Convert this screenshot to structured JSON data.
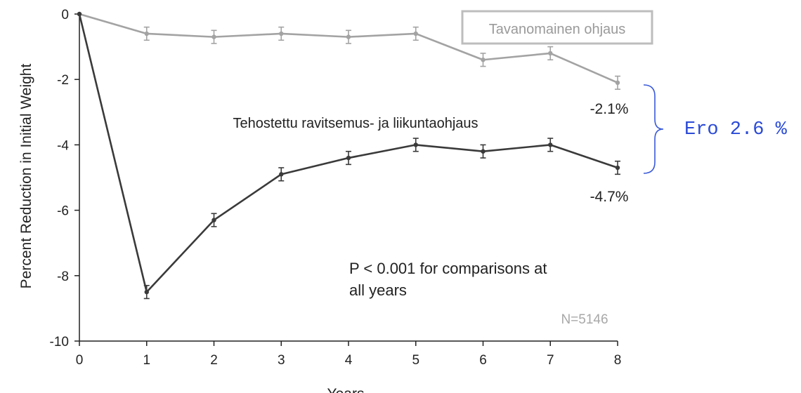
{
  "chart_data": {
    "type": "line",
    "xlabel": "Years",
    "ylabel": "Percent Reduction in Initial Weight",
    "xlim": [
      0,
      8
    ],
    "ylim": [
      -10,
      0
    ],
    "x_ticks": [
      "0",
      "1",
      "2",
      "3",
      "4",
      "5",
      "6",
      "7",
      "8"
    ],
    "y_ticks": [
      "0",
      "-2",
      "-4",
      "-6",
      "-8",
      "-10"
    ],
    "grid": false,
    "series": [
      {
        "name": "Tavanomainen ohjaus",
        "color": "#a3a3a3",
        "x": [
          0,
          1,
          2,
          3,
          4,
          5,
          6,
          7,
          8
        ],
        "y": [
          0,
          -0.6,
          -0.7,
          -0.6,
          -0.7,
          -0.6,
          -1.4,
          -1.2,
          -2.1
        ],
        "error": [
          0,
          0.2,
          0.2,
          0.2,
          0.2,
          0.2,
          0.2,
          0.2,
          0.2
        ],
        "end_label": "-2.1%"
      },
      {
        "name": "Tehostettu ravitsemus- ja liikuntaohjaus",
        "color": "#3a3a3a",
        "x": [
          0,
          1,
          2,
          3,
          4,
          5,
          6,
          7,
          8
        ],
        "y": [
          0,
          -8.5,
          -6.3,
          -4.9,
          -4.4,
          -4.0,
          -4.2,
          -4.0,
          -4.7
        ],
        "error": [
          0,
          0.2,
          0.2,
          0.2,
          0.2,
          0.2,
          0.2,
          0.2,
          0.2
        ],
        "end_label": "-4.7%"
      }
    ],
    "annotations": {
      "p_value_line1": "P < 0.001 for comparisons at",
      "p_value_line2": "all years",
      "n": "N=5146",
      "difference": "Ero 2.6 %",
      "difference_color": "#2b4bd6"
    }
  }
}
